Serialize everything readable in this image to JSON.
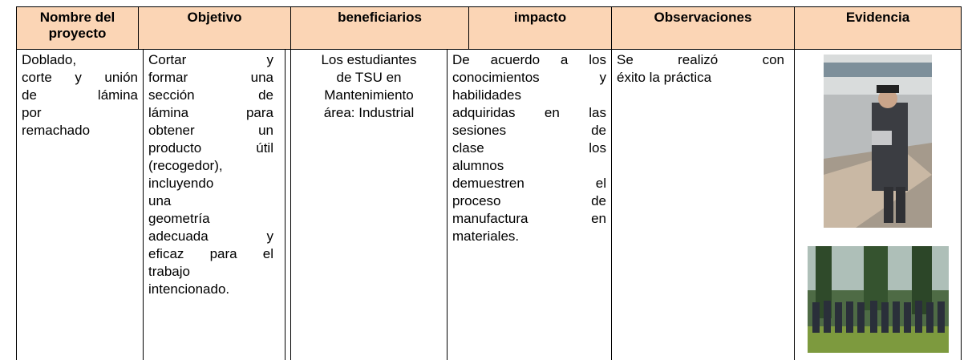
{
  "table": {
    "header": [
      "Nombre del proyecto",
      "Objetivo",
      "beneficiarios",
      "impacto",
      "Observaciones",
      "Evidencia"
    ],
    "rows": [
      [
        [
          "Doblado,",
          "corte y unión",
          "de lámina",
          "por",
          "remachado"
        ],
        [
          "Cortar y",
          "formar una",
          "sección de",
          "lámina para",
          "obtener un",
          "producto útil",
          "(recogedor),",
          "incluyendo",
          "una",
          "geometría",
          "adecuada y",
          "eficaz para el",
          "trabajo",
          "intencionado."
        ],
        [
          "Los estudiantes",
          "de TSU en",
          "Mantenimiento",
          "área: Industrial"
        ],
        [
          "De acuerdo a los",
          "conocimientos y",
          "habilidades",
          "adquiridas en las",
          "sesiones de",
          "clase los",
          "alumnos",
          "demuestren el",
          "proceso de",
          "manufactura en",
          "materiales."
        ],
        [
          "Se realizó con",
          "éxito la práctica"
        ]
      ]
    ]
  }
}
